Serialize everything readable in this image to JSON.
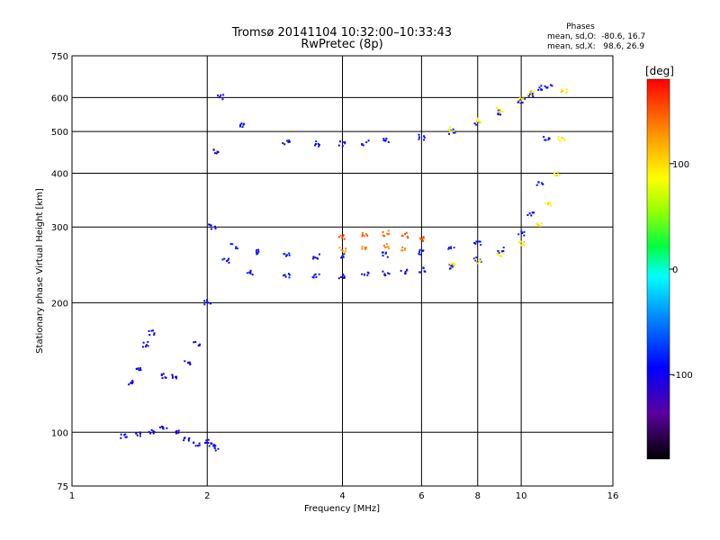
{
  "chart_data": {
    "type": "scatter",
    "title": "Tromsø 20141104 10:32:00–10:33:43",
    "subtitle": "RwPretec (8p)",
    "xlabel": "Frequency [MHz]",
    "ylabel": "Stationary phase Virtual Height [km]",
    "x_scale": "log",
    "y_scale": "log",
    "xlim": [
      1,
      16
    ],
    "ylim": [
      75,
      750
    ],
    "grid": true,
    "x_ticks": [
      1,
      2,
      4,
      6,
      8,
      10,
      16
    ],
    "y_ticks": [
      75,
      100,
      200,
      300,
      400,
      500,
      600,
      750
    ],
    "x_tick_labels": [
      "1",
      "2",
      "4",
      "6",
      "8",
      "10",
      "16"
    ],
    "y_tick_labels": [
      "75",
      "100",
      "200",
      "300",
      "400",
      "500",
      "600",
      "750"
    ],
    "stats": {
      "heading": "Phases",
      "line1": "mean, sd,O:  -80.6, 16.7",
      "line2": "mean, sd,X:   98.6, 26.9"
    },
    "colorbar": {
      "label": "[deg]",
      "range": [
        -180,
        180
      ],
      "ticks": [
        100,
        0,
        -100
      ],
      "tick_labels": [
        "100",
        "0",
        "-100"
      ]
    },
    "series": [
      {
        "x": [
          1.3,
          1.4,
          1.5,
          1.6,
          1.7,
          1.8,
          1.9,
          2.0,
          2.05,
          2.1
        ],
        "y": [
          98,
          99,
          100,
          102,
          100,
          97,
          94,
          95,
          93,
          92
        ],
        "phase": -100
      },
      {
        "x": [
          1.35,
          1.4,
          1.45,
          1.5,
          1.6,
          1.7,
          1.8,
          1.9,
          2.0,
          2.05,
          2.1,
          2.15
        ],
        "y": [
          130,
          140,
          160,
          170,
          135,
          135,
          145,
          160,
          200,
          300,
          450,
          600
        ],
        "phase": -105
      },
      {
        "x": [
          2.2,
          2.5,
          3.0,
          3.5,
          4.0,
          4.5,
          5.0,
          5.5,
          6.0,
          7.0,
          8.0,
          9.0,
          10.0,
          10.5,
          11.0,
          11.4
        ],
        "y": [
          250,
          235,
          232,
          231,
          231,
          232,
          234,
          236,
          238,
          243,
          252,
          265,
          290,
          320,
          380,
          480
        ],
        "phase": -95
      },
      {
        "x": [
          2.3,
          2.6,
          3.0,
          3.5,
          4.0,
          5.0,
          6.0,
          7.0,
          8.0
        ],
        "y": [
          270,
          262,
          258,
          256,
          257,
          258,
          262,
          268,
          275
        ],
        "phase": -90
      },
      {
        "x": [
          4.0,
          4.5,
          5.0,
          5.5,
          6.0
        ],
        "y": [
          285,
          288,
          290,
          287,
          282
        ],
        "phase": 150
      },
      {
        "x": [
          4.0,
          4.5,
          5.0,
          5.5
        ],
        "y": [
          265,
          268,
          270,
          268
        ],
        "phase": 130
      },
      {
        "x": [
          7.0,
          8.0,
          9.0,
          10.0,
          11.0,
          11.5,
          12.0,
          12.3,
          12.5
        ],
        "y": [
          245,
          250,
          260,
          275,
          305,
          340,
          400,
          480,
          620
        ],
        "phase": 95
      },
      {
        "x": [
          2.4,
          3.0,
          3.5,
          4.0,
          4.5,
          5.0,
          6.0,
          7.0,
          8.0,
          9.0,
          10.0,
          10.5,
          11.0,
          11.5
        ],
        "y": [
          515,
          470,
          468,
          468,
          470,
          475,
          485,
          500,
          525,
          555,
          590,
          610,
          630,
          640
        ],
        "phase": -98
      },
      {
        "x": [
          7.0,
          8.0,
          9.0,
          10.0,
          10.5
        ],
        "y": [
          505,
          530,
          560,
          595,
          615
        ],
        "phase": 90
      }
    ]
  }
}
